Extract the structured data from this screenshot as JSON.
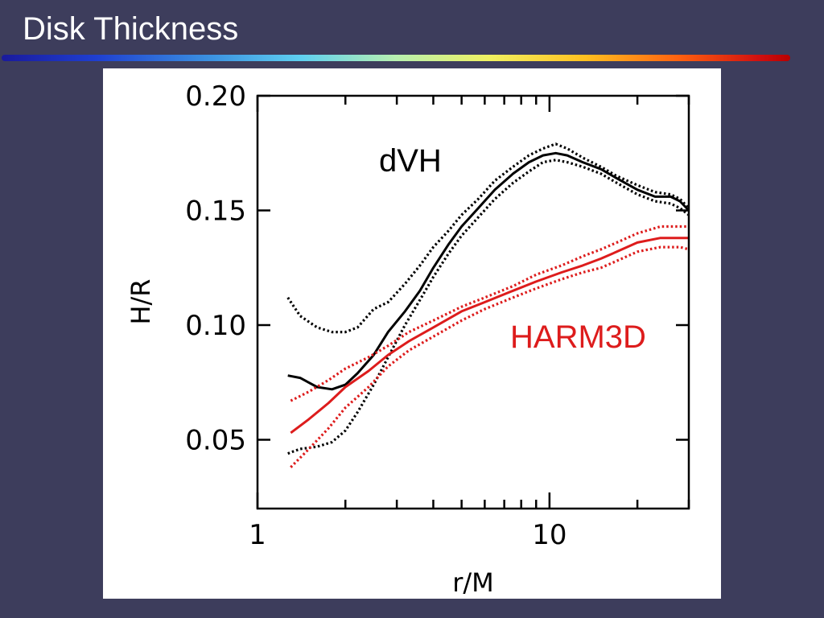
{
  "slide": {
    "title": "Disk Thickness"
  },
  "colors": {
    "background": "#3d3d5c",
    "dvh": "#000000",
    "harm3d": "#dd1c1c"
  },
  "chart_data": {
    "type": "line",
    "xscale": "log",
    "xlabel": "r/M",
    "ylabel": "H/R",
    "xlim": [
      1,
      30
    ],
    "ylim": [
      0.02,
      0.2
    ],
    "xticks": [
      1,
      10
    ],
    "xtick_labels": [
      "1",
      "10"
    ],
    "yticks": [
      0.05,
      0.1,
      0.15,
      0.2
    ],
    "ytick_labels": [
      "0.05",
      "0.10",
      "0.15",
      "0.20"
    ],
    "grid": false,
    "annotations": [
      {
        "text": "dVH",
        "color": "#000000"
      },
      {
        "text": "HARM3D",
        "color": "#dd1c1c"
      }
    ],
    "series": [
      {
        "color": "#000000",
        "style": "solid",
        "x": [
          1.27,
          1.4,
          1.6,
          1.8,
          2.0,
          2.2,
          2.5,
          2.8,
          3.2,
          3.6,
          4.0,
          4.5,
          5.0,
          5.7,
          6.5,
          7.5,
          8.5,
          9.5,
          10.5,
          11.5,
          13,
          15,
          17,
          20,
          23,
          26,
          28,
          30
        ],
        "y": [
          0.078,
          0.077,
          0.073,
          0.072,
          0.074,
          0.079,
          0.087,
          0.097,
          0.106,
          0.115,
          0.125,
          0.135,
          0.143,
          0.151,
          0.159,
          0.166,
          0.171,
          0.174,
          0.175,
          0.174,
          0.171,
          0.168,
          0.164,
          0.159,
          0.156,
          0.156,
          0.154,
          0.15
        ]
      },
      {
        "color": "#000000",
        "style": "dotted",
        "x": [
          1.27,
          1.4,
          1.6,
          1.8,
          2.0,
          2.2,
          2.5,
          2.8,
          3.2,
          3.6,
          4.0,
          4.5,
          5.0,
          5.7,
          6.5,
          7.5,
          8.5,
          9.5,
          10.5,
          11.5,
          13,
          15,
          17,
          20,
          23,
          26,
          28,
          30
        ],
        "y": [
          0.112,
          0.104,
          0.099,
          0.097,
          0.097,
          0.099,
          0.107,
          0.11,
          0.118,
          0.126,
          0.134,
          0.141,
          0.148,
          0.155,
          0.163,
          0.169,
          0.174,
          0.177,
          0.179,
          0.177,
          0.173,
          0.169,
          0.165,
          0.161,
          0.158,
          0.157,
          0.155,
          0.151
        ]
      },
      {
        "color": "#000000",
        "style": "dotted",
        "x": [
          1.27,
          1.4,
          1.6,
          1.8,
          2.0,
          2.2,
          2.5,
          2.8,
          3.2,
          3.6,
          4.0,
          4.5,
          5.0,
          5.7,
          6.5,
          7.5,
          8.5,
          9.5,
          10.5,
          11.5,
          13,
          15,
          17,
          20,
          23,
          26,
          28,
          30
        ],
        "y": [
          0.044,
          0.046,
          0.047,
          0.049,
          0.054,
          0.062,
          0.074,
          0.086,
          0.1,
          0.111,
          0.121,
          0.131,
          0.139,
          0.147,
          0.155,
          0.162,
          0.167,
          0.171,
          0.172,
          0.171,
          0.169,
          0.166,
          0.162,
          0.157,
          0.154,
          0.153,
          0.151,
          0.148
        ]
      },
      {
        "color": "#dd1c1c",
        "style": "solid",
        "x": [
          1.3,
          1.5,
          1.75,
          2.0,
          2.4,
          2.8,
          3.3,
          4.0,
          5.0,
          6.0,
          7.5,
          9.0,
          11,
          13,
          15,
          17,
          20,
          24,
          28,
          30
        ],
        "y": [
          0.053,
          0.059,
          0.066,
          0.073,
          0.08,
          0.087,
          0.093,
          0.099,
          0.106,
          0.11,
          0.115,
          0.119,
          0.123,
          0.126,
          0.129,
          0.132,
          0.136,
          0.138,
          0.138,
          0.138
        ]
      },
      {
        "color": "#dd1c1c",
        "style": "dotted",
        "x": [
          1.3,
          1.5,
          1.75,
          2.0,
          2.4,
          2.8,
          3.3,
          4.0,
          5.0,
          6.0,
          7.5,
          9.0,
          11,
          13,
          15,
          17,
          20,
          24,
          28,
          30
        ],
        "y": [
          0.067,
          0.071,
          0.076,
          0.081,
          0.086,
          0.091,
          0.097,
          0.102,
          0.108,
          0.112,
          0.117,
          0.122,
          0.126,
          0.13,
          0.133,
          0.136,
          0.14,
          0.143,
          0.143,
          0.143
        ]
      },
      {
        "color": "#dd1c1c",
        "style": "dotted",
        "x": [
          1.3,
          1.5,
          1.75,
          2.0,
          2.4,
          2.8,
          3.3,
          4.0,
          5.0,
          6.0,
          7.5,
          9.0,
          11,
          13,
          15,
          17,
          20,
          24,
          28,
          30
        ],
        "y": [
          0.038,
          0.046,
          0.055,
          0.064,
          0.073,
          0.082,
          0.089,
          0.095,
          0.102,
          0.107,
          0.112,
          0.116,
          0.12,
          0.123,
          0.125,
          0.128,
          0.132,
          0.134,
          0.134,
          0.133
        ]
      }
    ]
  }
}
